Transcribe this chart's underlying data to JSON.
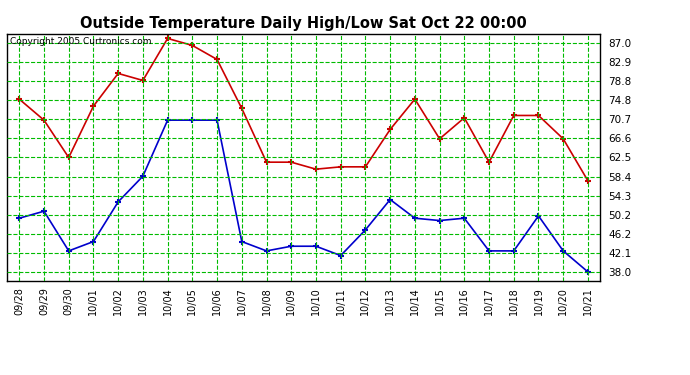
{
  "title": "Outside Temperature Daily High/Low Sat Oct 22 00:00",
  "copyright": "Copyright 2005 Curtronics.com",
  "x_labels": [
    "09/28",
    "09/29",
    "09/30",
    "10/01",
    "10/02",
    "10/03",
    "10/04",
    "10/05",
    "10/06",
    "10/07",
    "10/08",
    "10/09",
    "10/10",
    "10/11",
    "10/12",
    "10/13",
    "10/14",
    "10/15",
    "10/16",
    "10/17",
    "10/18",
    "10/19",
    "10/20",
    "10/21"
  ],
  "high_temps": [
    75.0,
    70.5,
    62.5,
    73.5,
    80.5,
    79.0,
    88.0,
    86.5,
    83.5,
    73.0,
    61.5,
    61.5,
    60.0,
    60.5,
    60.5,
    68.5,
    75.0,
    66.5,
    71.0,
    61.5,
    71.5,
    71.5,
    66.5,
    57.5
  ],
  "low_temps": [
    49.5,
    51.0,
    42.5,
    44.5,
    53.0,
    58.5,
    70.5,
    70.5,
    70.5,
    44.5,
    42.5,
    43.5,
    43.5,
    41.5,
    47.0,
    53.5,
    49.5,
    49.0,
    49.5,
    42.5,
    42.5,
    50.0,
    42.5,
    38.0
  ],
  "high_color": "#cc0000",
  "low_color": "#0000cc",
  "bg_color": "#ffffff",
  "plot_bg_color": "#ffffff",
  "grid_color": "#00bb00",
  "title_color": "#000000",
  "border_color": "#000000",
  "y_ticks": [
    38.0,
    42.1,
    46.2,
    50.2,
    54.3,
    58.4,
    62.5,
    66.6,
    70.7,
    74.8,
    78.8,
    82.9,
    87.0
  ],
  "y_min": 36.0,
  "y_max": 89.0,
  "marker": "+"
}
